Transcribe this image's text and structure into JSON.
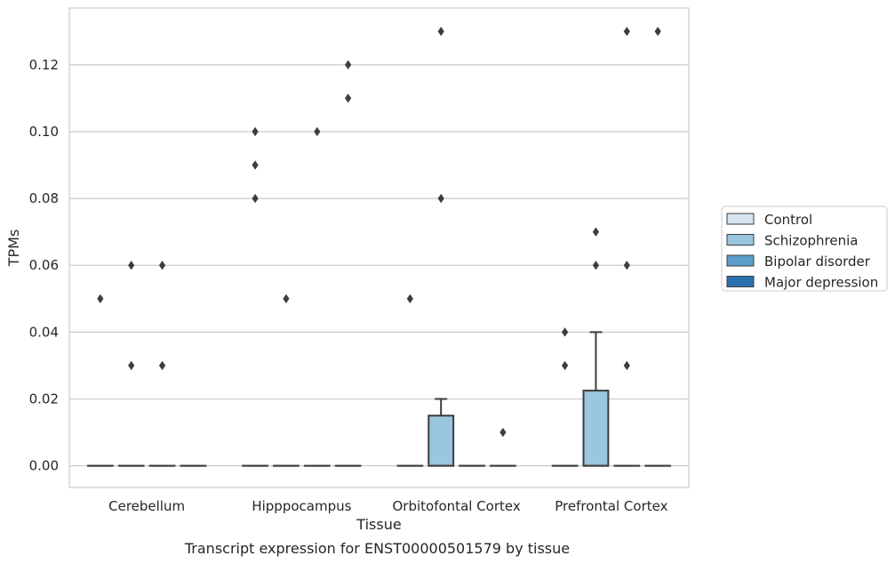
{
  "chart_data": {
    "type": "box",
    "caption": "Transcript expression for ENST00000501579 by tissue",
    "xlabel": "Tissue",
    "ylabel": "TPMs",
    "categories": [
      "Cerebellum",
      "Hipppocampus",
      "Orbitofontal Cortex",
      "Prefrontal Cortex"
    ],
    "ylim": [
      -0.0065,
      0.137
    ],
    "yticks": [
      0.0,
      0.02,
      0.04,
      0.06,
      0.08,
      0.1,
      0.12
    ],
    "ytick_labels": [
      "0.00",
      "0.02",
      "0.04",
      "0.06",
      "0.08",
      "0.10",
      "0.12"
    ],
    "grid": "horizontal",
    "legend_position": "right",
    "series": [
      {
        "name": "Control",
        "color": "#d6e5f2",
        "boxes": [
          {
            "q1": 0,
            "median": 0,
            "q3": 0,
            "whisker_low": 0,
            "whisker_high": 0,
            "outliers": [
              0.05
            ]
          },
          {
            "q1": 0,
            "median": 0,
            "q3": 0,
            "whisker_low": 0,
            "whisker_high": 0,
            "outliers": [
              0.08,
              0.09,
              0.1
            ]
          },
          {
            "q1": 0,
            "median": 0,
            "q3": 0,
            "whisker_low": 0,
            "whisker_high": 0,
            "outliers": [
              0.05
            ]
          },
          {
            "q1": 0,
            "median": 0,
            "q3": 0,
            "whisker_low": 0,
            "whisker_high": 0,
            "outliers": [
              0.03,
              0.04
            ]
          }
        ]
      },
      {
        "name": "Schizophrenia",
        "color": "#9ac6df",
        "boxes": [
          {
            "q1": 0,
            "median": 0,
            "q3": 0,
            "whisker_low": 0,
            "whisker_high": 0,
            "outliers": [
              0.03,
              0.06
            ]
          },
          {
            "q1": 0,
            "median": 0,
            "q3": 0,
            "whisker_low": 0,
            "whisker_high": 0,
            "outliers": [
              0.05
            ]
          },
          {
            "q1": 0,
            "median": 0,
            "q3": 0.015,
            "whisker_low": 0,
            "whisker_high": 0.02,
            "outliers": [
              0.08,
              0.13
            ]
          },
          {
            "q1": 0,
            "median": 0,
            "q3": 0.0225,
            "whisker_low": 0,
            "whisker_high": 0.04,
            "outliers": [
              0.06,
              0.07
            ]
          }
        ]
      },
      {
        "name": "Bipolar disorder",
        "color": "#5a9ec9",
        "boxes": [
          {
            "q1": 0,
            "median": 0,
            "q3": 0,
            "whisker_low": 0,
            "whisker_high": 0,
            "outliers": [
              0.03,
              0.06
            ]
          },
          {
            "q1": 0,
            "median": 0,
            "q3": 0,
            "whisker_low": 0,
            "whisker_high": 0,
            "outliers": [
              0.1
            ]
          },
          {
            "q1": 0,
            "median": 0,
            "q3": 0,
            "whisker_low": 0,
            "whisker_high": 0,
            "outliers": []
          },
          {
            "q1": 0,
            "median": 0,
            "q3": 0,
            "whisker_low": 0,
            "whisker_high": 0,
            "outliers": [
              0.03,
              0.06,
              0.13
            ]
          }
        ]
      },
      {
        "name": "Major depression",
        "color": "#2a6fae",
        "boxes": [
          {
            "q1": 0,
            "median": 0,
            "q3": 0,
            "whisker_low": 0,
            "whisker_high": 0,
            "outliers": []
          },
          {
            "q1": 0,
            "median": 0,
            "q3": 0,
            "whisker_low": 0,
            "whisker_high": 0,
            "outliers": [
              0.11,
              0.12
            ]
          },
          {
            "q1": 0,
            "median": 0,
            "q3": 0,
            "whisker_low": 0,
            "whisker_high": 0,
            "outliers": [
              0.01
            ]
          },
          {
            "q1": 0,
            "median": 0,
            "q3": 0,
            "whisker_low": 0,
            "whisker_high": 0,
            "outliers": [
              0.13
            ]
          }
        ]
      }
    ]
  }
}
